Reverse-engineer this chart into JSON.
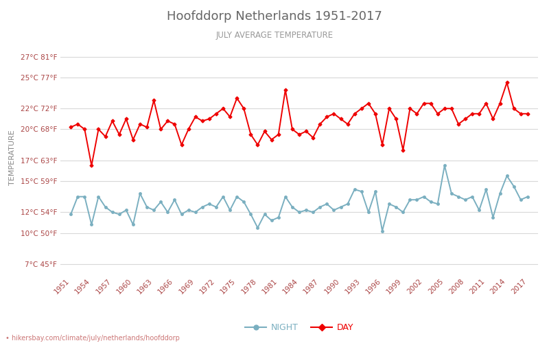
{
  "title": "Hoofddorp Netherlands 1951-2017",
  "subtitle": "JULY AVERAGE TEMPERATURE",
  "ylabel": "TEMPERATURE",
  "footer": "• hikersbay.com/climate/july/netherlands/hoofddorp",
  "yticks_c": [
    7,
    10,
    12,
    15,
    17,
    20,
    22,
    25,
    27
  ],
  "yticks_f": [
    45,
    50,
    54,
    59,
    63,
    68,
    72,
    77,
    81
  ],
  "ylim": [
    6.0,
    28.5
  ],
  "years": [
    1951,
    1952,
    1953,
    1954,
    1955,
    1956,
    1957,
    1958,
    1959,
    1960,
    1961,
    1962,
    1963,
    1964,
    1965,
    1966,
    1967,
    1968,
    1969,
    1970,
    1971,
    1972,
    1973,
    1974,
    1975,
    1976,
    1977,
    1978,
    1979,
    1980,
    1981,
    1982,
    1983,
    1984,
    1985,
    1986,
    1987,
    1988,
    1989,
    1990,
    1991,
    1992,
    1993,
    1994,
    1995,
    1996,
    1997,
    1998,
    1999,
    2000,
    2001,
    2002,
    2003,
    2004,
    2005,
    2006,
    2007,
    2008,
    2009,
    2010,
    2011,
    2012,
    2013,
    2014,
    2015,
    2016,
    2017
  ],
  "day_temps": [
    20.2,
    20.5,
    20.0,
    16.5,
    20.0,
    19.3,
    20.8,
    19.5,
    21.0,
    19.0,
    20.5,
    20.2,
    22.8,
    20.0,
    20.8,
    20.5,
    18.5,
    20.0,
    21.2,
    20.8,
    21.0,
    21.5,
    22.0,
    21.2,
    23.0,
    22.0,
    19.5,
    18.5,
    19.8,
    19.0,
    19.5,
    23.8,
    20.0,
    19.5,
    19.8,
    19.2,
    20.5,
    21.2,
    21.5,
    21.0,
    20.5,
    21.5,
    22.0,
    22.5,
    21.5,
    18.5,
    22.0,
    21.0,
    18.0,
    22.0,
    21.5,
    22.5,
    22.5,
    21.5,
    22.0,
    22.0,
    20.5,
    21.0,
    21.5,
    21.5,
    22.5,
    21.0,
    22.5,
    24.5,
    22.0,
    21.5,
    21.5
  ],
  "night_temps": [
    11.8,
    13.5,
    13.5,
    10.8,
    13.5,
    12.5,
    12.0,
    11.8,
    12.2,
    10.8,
    13.8,
    12.5,
    12.2,
    13.0,
    12.0,
    13.2,
    11.8,
    12.2,
    12.0,
    12.5,
    12.8,
    12.5,
    13.5,
    12.2,
    13.5,
    13.0,
    11.8,
    10.5,
    11.8,
    11.2,
    11.5,
    13.5,
    12.5,
    12.0,
    12.2,
    12.0,
    12.5,
    12.8,
    12.2,
    12.5,
    12.8,
    14.2,
    14.0,
    12.0,
    14.0,
    10.2,
    12.8,
    12.5,
    12.0,
    13.2,
    13.2,
    13.5,
    13.0,
    12.8,
    16.5,
    13.8,
    13.5,
    13.2,
    13.5,
    12.2,
    14.2,
    11.5,
    13.8,
    15.5,
    14.5,
    13.2,
    13.5
  ],
  "day_color": "#ee0000",
  "night_color": "#7aafc0",
  "day_marker": "D",
  "night_marker": "o",
  "marker_size": 2.5,
  "line_width": 1.4,
  "grid_color": "#d8d8d8",
  "bg_color": "#ffffff",
  "title_color": "#666666",
  "subtitle_color": "#999999",
  "ylabel_color": "#888888",
  "tick_color": "#aa4444",
  "footer_color": "#cc7777",
  "legend_night": "NIGHT",
  "legend_day": "DAY"
}
